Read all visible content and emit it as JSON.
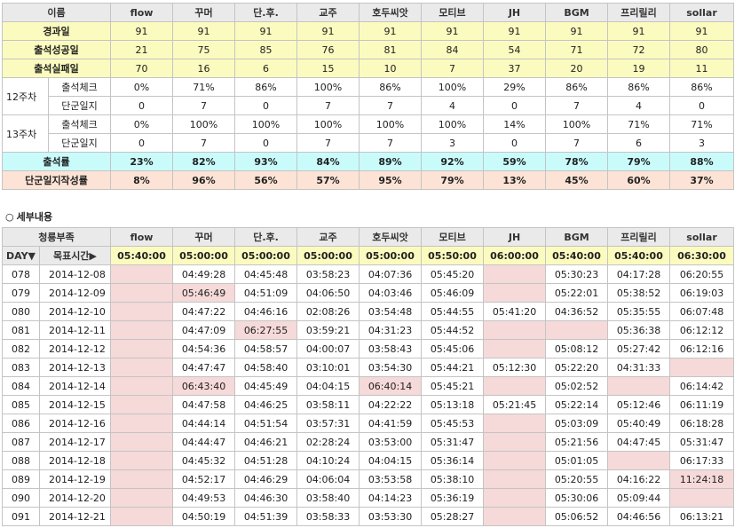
{
  "summary": {
    "header": [
      "이름",
      "flow",
      "꾸머",
      "단.후.",
      "교주",
      "호두씨앗",
      "모티브",
      "JH",
      "BGM",
      "프리릴리",
      "sollar"
    ],
    "elapsed": {
      "label": "경과일",
      "values": [
        "91",
        "91",
        "91",
        "91",
        "91",
        "91",
        "91",
        "91",
        "91",
        "91"
      ]
    },
    "success": {
      "label": "출석성공일",
      "values": [
        "21",
        "75",
        "85",
        "76",
        "81",
        "84",
        "54",
        "71",
        "72",
        "80"
      ]
    },
    "fail": {
      "label": "출석실패일",
      "values": [
        "70",
        "16",
        "6",
        "15",
        "10",
        "7",
        "37",
        "20",
        "19",
        "11"
      ]
    },
    "weeks": [
      {
        "week_label": "12주차",
        "check": {
          "label": "출석체크",
          "values": [
            "0%",
            "71%",
            "86%",
            "100%",
            "86%",
            "100%",
            "29%",
            "86%",
            "86%",
            "86%"
          ]
        },
        "diary": {
          "label": "단군일지",
          "values": [
            "0",
            "7",
            "0",
            "7",
            "7",
            "4",
            "0",
            "7",
            "4",
            "0"
          ]
        }
      },
      {
        "week_label": "13주차",
        "check": {
          "label": "출석체크",
          "values": [
            "0%",
            "100%",
            "100%",
            "100%",
            "100%",
            "100%",
            "14%",
            "100%",
            "71%",
            "71%"
          ]
        },
        "diary": {
          "label": "단군일지",
          "values": [
            "0",
            "7",
            "0",
            "7",
            "7",
            "3",
            "0",
            "7",
            "6",
            "3"
          ]
        }
      }
    ],
    "rate": {
      "label": "출석률",
      "values": [
        "23%",
        "82%",
        "93%",
        "84%",
        "89%",
        "92%",
        "59%",
        "78%",
        "79%",
        "88%"
      ]
    },
    "diary_rate": {
      "label": "단군일지작성률",
      "values": [
        "8%",
        "96%",
        "56%",
        "57%",
        "95%",
        "79%",
        "13%",
        "45%",
        "60%",
        "37%"
      ]
    }
  },
  "section": {
    "bullet": "○",
    "title": "세부내용"
  },
  "detail": {
    "header": [
      "청룡부족",
      "flow",
      "꾸머",
      "단.후.",
      "교주",
      "호두씨앗",
      "모티브",
      "JH",
      "BGM",
      "프리릴리",
      "sollar"
    ],
    "target": {
      "day_label": "DAY▼",
      "target_label": "목표시간▶",
      "values": [
        "05:40:00",
        "05:00:00",
        "05:00:00",
        "05:00:00",
        "05:00:00",
        "05:50:00",
        "06:00:00",
        "05:40:00",
        "05:40:00",
        "06:30:00"
      ]
    },
    "rows": [
      {
        "day": "078",
        "date": "2014-12-08",
        "v": [
          "",
          "04:49:28",
          "04:45:48",
          "03:58:23",
          "04:07:36",
          "05:45:20",
          "",
          "05:30:23",
          "04:17:28",
          "06:20:55"
        ],
        "m": [
          1,
          0,
          0,
          0,
          0,
          0,
          1,
          0,
          0,
          0
        ]
      },
      {
        "day": "079",
        "date": "2014-12-09",
        "v": [
          "",
          "05:46:49",
          "04:51:09",
          "04:06:50",
          "04:03:46",
          "05:46:09",
          "",
          "05:22:01",
          "05:38:52",
          "06:19:03"
        ],
        "m": [
          1,
          1,
          0,
          0,
          0,
          0,
          1,
          0,
          0,
          0
        ]
      },
      {
        "day": "080",
        "date": "2014-12-10",
        "v": [
          "",
          "04:47:22",
          "04:46:16",
          "02:08:26",
          "03:54:48",
          "05:44:55",
          "05:41:20",
          "04:36:52",
          "05:35:55",
          "06:07:48"
        ],
        "m": [
          1,
          0,
          0,
          0,
          0,
          0,
          0,
          0,
          0,
          0
        ]
      },
      {
        "day": "081",
        "date": "2014-12-11",
        "v": [
          "",
          "04:47:09",
          "06:27:55",
          "03:59:21",
          "04:31:23",
          "05:44:52",
          "",
          "",
          "05:36:38",
          "06:12:12"
        ],
        "m": [
          1,
          0,
          1,
          0,
          0,
          0,
          1,
          1,
          0,
          0
        ]
      },
      {
        "day": "082",
        "date": "2014-12-12",
        "v": [
          "",
          "04:54:36",
          "04:58:57",
          "04:00:07",
          "03:58:43",
          "05:45:06",
          "",
          "05:08:12",
          "05:27:42",
          "06:12:16"
        ],
        "m": [
          1,
          0,
          0,
          0,
          0,
          0,
          1,
          0,
          0,
          0
        ]
      },
      {
        "day": "083",
        "date": "2014-12-13",
        "v": [
          "",
          "04:47:47",
          "04:58:40",
          "03:10:01",
          "03:54:30",
          "05:44:21",
          "05:12:30",
          "05:22:20",
          "04:31:33",
          ""
        ],
        "m": [
          1,
          0,
          0,
          0,
          0,
          0,
          0,
          0,
          0,
          1
        ]
      },
      {
        "day": "084",
        "date": "2014-12-14",
        "v": [
          "",
          "06:43:40",
          "04:45:49",
          "04:04:15",
          "06:40:14",
          "05:45:21",
          "",
          "05:02:52",
          "",
          "06:14:42"
        ],
        "m": [
          1,
          1,
          0,
          0,
          1,
          0,
          1,
          0,
          1,
          0
        ]
      },
      {
        "day": "085",
        "date": "2014-12-15",
        "v": [
          "",
          "04:47:58",
          "04:46:25",
          "03:58:11",
          "04:22:22",
          "05:13:18",
          "05:21:45",
          "05:22:14",
          "05:12:46",
          "06:11:19"
        ],
        "m": [
          1,
          0,
          0,
          0,
          0,
          0,
          0,
          0,
          0,
          0
        ]
      },
      {
        "day": "086",
        "date": "2014-12-16",
        "v": [
          "",
          "04:44:14",
          "04:51:54",
          "03:57:31",
          "04:41:59",
          "05:45:53",
          "",
          "05:03:09",
          "05:40:49",
          "06:18:28"
        ],
        "m": [
          1,
          0,
          0,
          0,
          0,
          0,
          1,
          0,
          0,
          0
        ]
      },
      {
        "day": "087",
        "date": "2014-12-17",
        "v": [
          "",
          "04:44:47",
          "04:46:21",
          "02:28:24",
          "03:53:00",
          "05:31:47",
          "",
          "05:21:56",
          "04:47:45",
          "05:31:47"
        ],
        "m": [
          1,
          0,
          0,
          0,
          0,
          0,
          1,
          0,
          0,
          0
        ]
      },
      {
        "day": "088",
        "date": "2014-12-18",
        "v": [
          "",
          "04:45:32",
          "04:51:28",
          "04:10:24",
          "04:04:15",
          "05:36:14",
          "",
          "05:01:05",
          "",
          "06:17:33"
        ],
        "m": [
          1,
          0,
          0,
          0,
          0,
          0,
          1,
          0,
          1,
          0
        ]
      },
      {
        "day": "089",
        "date": "2014-12-19",
        "v": [
          "",
          "04:52:17",
          "04:46:29",
          "04:06:04",
          "03:53:58",
          "05:38:10",
          "",
          "05:20:55",
          "04:16:22",
          "11:24:18"
        ],
        "m": [
          1,
          0,
          0,
          0,
          0,
          0,
          1,
          0,
          0,
          1
        ]
      },
      {
        "day": "090",
        "date": "2014-12-20",
        "v": [
          "",
          "04:49:53",
          "04:46:30",
          "03:58:40",
          "04:14:23",
          "05:36:19",
          "",
          "05:30:06",
          "05:09:44",
          ""
        ],
        "m": [
          1,
          0,
          0,
          0,
          0,
          0,
          1,
          0,
          0,
          1
        ]
      },
      {
        "day": "091",
        "date": "2014-12-21",
        "v": [
          "",
          "04:50:19",
          "04:51:39",
          "03:58:33",
          "03:53:30",
          "05:28:27",
          "",
          "05:06:52",
          "04:46:56",
          "06:13:21"
        ],
        "m": [
          1,
          0,
          0,
          0,
          0,
          0,
          1,
          0,
          0,
          0
        ]
      }
    ]
  },
  "colors": {
    "header_bg": "#eaeaea",
    "yellow": "#fbfbbf",
    "cyan": "#c9fbfb",
    "peach": "#fde3d5",
    "missed": "#f6d9d9"
  }
}
